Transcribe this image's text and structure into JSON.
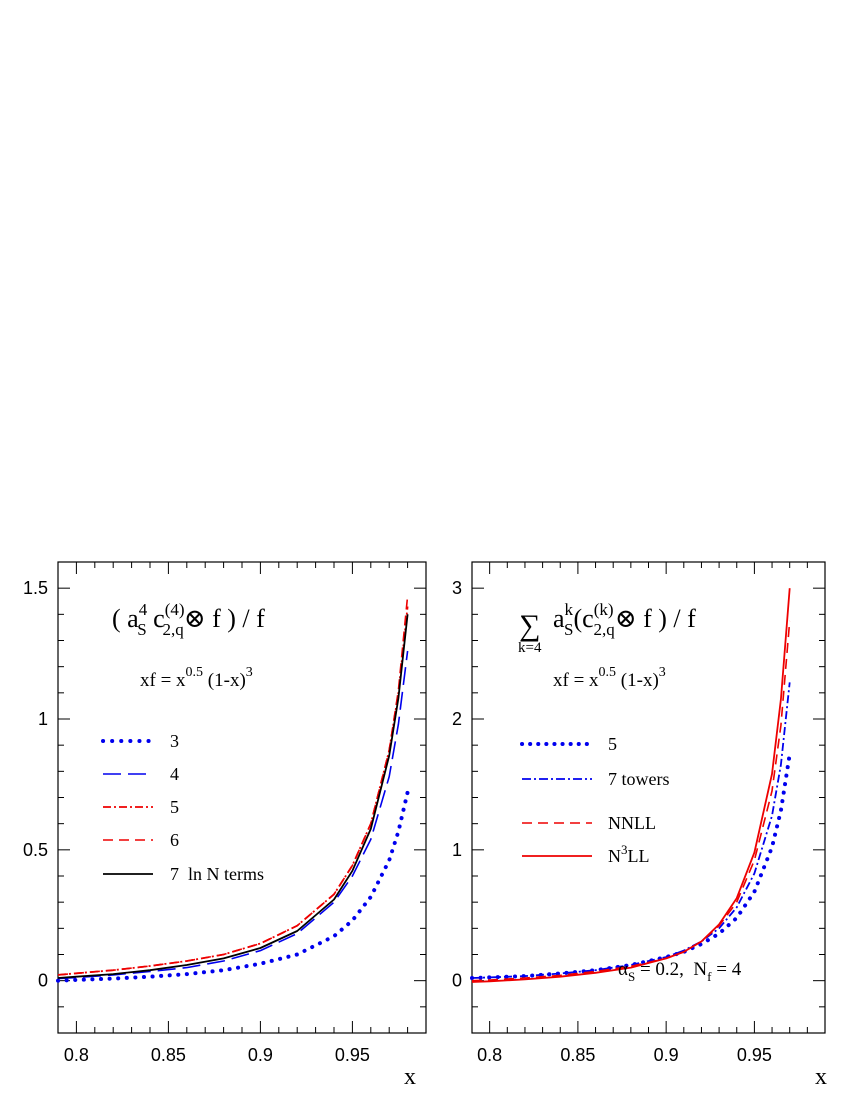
{
  "chart_data": [
    {
      "type": "line",
      "title": "( a_S^4 c_{2,q}^{(4)} ⊗ f ) / f",
      "title_parts": {
        "open": "( a",
        "a_sup": "4",
        "a_sub": "S",
        "c": " c",
        "c_sup": "(4)",
        "c_sub": "2,q",
        "otimes": "⊗",
        "tail": " f ) / f"
      },
      "subtitle_parts": {
        "lhs": "xf = x",
        "exp1": "0.5",
        "mid": " (1-x)",
        "exp2": "3"
      },
      "xlabel": "x",
      "ylabel": "",
      "xlim": [
        0.79,
        0.99
      ],
      "ylim": [
        -0.2,
        1.6
      ],
      "xticks": [
        0.8,
        0.85,
        0.9,
        0.95
      ],
      "xtick_labels": [
        "0.8",
        "0.85",
        "0.9",
        "0.95"
      ],
      "yticks": [
        0,
        0.5,
        1,
        1.5
      ],
      "ytick_labels": [
        "0",
        "0.5",
        "1",
        "1.5"
      ],
      "grid": false,
      "legend_position": "center-left",
      "series": [
        {
          "name": "3",
          "color": "#0000ee",
          "style": "dotted",
          "x": [
            0.79,
            0.8,
            0.82,
            0.84,
            0.86,
            0.88,
            0.9,
            0.92,
            0.94,
            0.95,
            0.96,
            0.97,
            0.975,
            0.98
          ],
          "y": [
            0.0,
            0.003,
            0.008,
            0.015,
            0.025,
            0.04,
            0.065,
            0.1,
            0.17,
            0.23,
            0.32,
            0.46,
            0.57,
            0.72
          ]
        },
        {
          "name": "4",
          "color": "#0000ee",
          "style": "longdash",
          "x": [
            0.79,
            0.8,
            0.82,
            0.84,
            0.86,
            0.88,
            0.9,
            0.92,
            0.94,
            0.95,
            0.96,
            0.97,
            0.975,
            0.98
          ],
          "y": [
            0.008,
            0.012,
            0.022,
            0.035,
            0.05,
            0.075,
            0.115,
            0.18,
            0.3,
            0.4,
            0.54,
            0.78,
            0.98,
            1.26
          ]
        },
        {
          "name": "5",
          "color": "#ee0000",
          "style": "dashdot",
          "x": [
            0.79,
            0.8,
            0.82,
            0.84,
            0.86,
            0.88,
            0.9,
            0.92,
            0.94,
            0.95,
            0.96,
            0.97,
            0.975,
            0.98
          ],
          "y": [
            0.022,
            0.028,
            0.04,
            0.056,
            0.075,
            0.1,
            0.142,
            0.21,
            0.33,
            0.44,
            0.6,
            0.88,
            1.1,
            1.43
          ]
        },
        {
          "name": "6",
          "color": "#ee0000",
          "style": "dashed",
          "x": [
            0.79,
            0.8,
            0.82,
            0.84,
            0.86,
            0.88,
            0.9,
            0.92,
            0.94,
            0.95,
            0.96,
            0.97,
            0.975,
            0.98
          ],
          "y": [
            0.022,
            0.028,
            0.04,
            0.056,
            0.075,
            0.1,
            0.142,
            0.21,
            0.33,
            0.44,
            0.6,
            0.88,
            1.11,
            1.47
          ]
        },
        {
          "name": "7  ln N terms",
          "color": "#000000",
          "style": "solid",
          "x": [
            0.79,
            0.8,
            0.82,
            0.84,
            0.86,
            0.88,
            0.9,
            0.92,
            0.94,
            0.95,
            0.96,
            0.97,
            0.975,
            0.98
          ],
          "y": [
            0.01,
            0.015,
            0.025,
            0.04,
            0.06,
            0.085,
            0.125,
            0.19,
            0.31,
            0.42,
            0.58,
            0.86,
            1.08,
            1.4
          ]
        }
      ]
    },
    {
      "type": "line",
      "title_parts": {
        "sum": "∑",
        "sum_sub": "k=4",
        "a": "a",
        "a_sup": "k",
        "a_sub": "S",
        "open": "(c",
        "c_sup": "(k)",
        "c_sub": "2,q",
        "otimes": "⊗",
        "tail": " f ) / f"
      },
      "subtitle_parts": {
        "lhs": "xf = x",
        "exp1": "0.5",
        "mid": " (1-x)",
        "exp2": "3"
      },
      "annotation_parts": {
        "alpha": "α",
        "alpha_sub": "S",
        "mid": " = 0.2,  N",
        "nf_sub": "f",
        "tail": " = 4"
      },
      "xlabel": "x",
      "ylabel": "",
      "xlim": [
        0.79,
        0.99
      ],
      "ylim": [
        -0.4,
        3.2
      ],
      "xticks": [
        0.8,
        0.85,
        0.9,
        0.95
      ],
      "xtick_labels": [
        "0.8",
        "0.85",
        "0.9",
        "0.95"
      ],
      "yticks": [
        0,
        1,
        2,
        3
      ],
      "ytick_labels": [
        "0",
        "1",
        "2",
        "3"
      ],
      "grid": false,
      "legend_position": "center-left",
      "series": [
        {
          "name": "5",
          "color": "#0000ee",
          "style": "dotted",
          "x": [
            0.79,
            0.8,
            0.82,
            0.84,
            0.86,
            0.88,
            0.9,
            0.91,
            0.92,
            0.93,
            0.94,
            0.95,
            0.96,
            0.965,
            0.97
          ],
          "y": [
            0.02,
            0.025,
            0.035,
            0.055,
            0.08,
            0.12,
            0.18,
            0.22,
            0.28,
            0.36,
            0.48,
            0.68,
            1.02,
            1.3,
            1.73
          ]
        },
        {
          "name": "7 towers",
          "color": "#0000ee",
          "style": "dashdot",
          "x": [
            0.79,
            0.8,
            0.82,
            0.84,
            0.86,
            0.88,
            0.9,
            0.91,
            0.92,
            0.93,
            0.94,
            0.95,
            0.96,
            0.965,
            0.97
          ],
          "y": [
            0.02,
            0.025,
            0.035,
            0.055,
            0.08,
            0.12,
            0.18,
            0.23,
            0.3,
            0.4,
            0.56,
            0.82,
            1.26,
            1.65,
            2.28
          ]
        },
        {
          "name": "NNLL",
          "color": "#ee0000",
          "style": "dashed",
          "x": [
            0.79,
            0.8,
            0.82,
            0.84,
            0.86,
            0.88,
            0.9,
            0.91,
            0.92,
            0.93,
            0.94,
            0.95,
            0.96,
            0.965,
            0.97
          ],
          "y": [
            0.0,
            0.005,
            0.02,
            0.04,
            0.07,
            0.11,
            0.17,
            0.22,
            0.3,
            0.42,
            0.6,
            0.92,
            1.45,
            1.95,
            2.75
          ]
        },
        {
          "name": "N^3LL",
          "label_parts": {
            "base": "N",
            "sup": "3",
            "tail": "LL"
          },
          "color": "#ee0000",
          "style": "solid",
          "x": [
            0.79,
            0.8,
            0.82,
            0.84,
            0.86,
            0.88,
            0.9,
            0.91,
            0.92,
            0.93,
            0.94,
            0.95,
            0.96,
            0.965,
            0.97
          ],
          "y": [
            -0.01,
            -0.005,
            0.01,
            0.03,
            0.06,
            0.1,
            0.17,
            0.22,
            0.3,
            0.43,
            0.63,
            0.98,
            1.58,
            2.15,
            3.0
          ]
        }
      ]
    }
  ]
}
